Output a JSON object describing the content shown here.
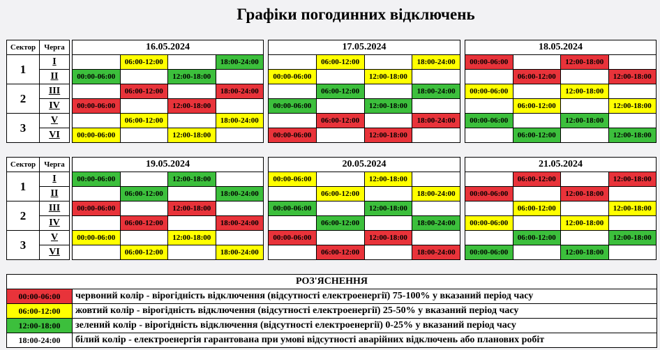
{
  "title": "Графіки погодинних відключень",
  "headers": {
    "sector": "Сектор",
    "queue": "Черга"
  },
  "rows": [
    {
      "sector": "1",
      "queue": "I"
    },
    {
      "sector": "",
      "queue": "II"
    },
    {
      "sector": "2",
      "queue": "III"
    },
    {
      "sector": "",
      "queue": "IV"
    },
    {
      "sector": "3",
      "queue": "V"
    },
    {
      "sector": "",
      "queue": "VI"
    }
  ],
  "days": [
    {
      "date": "16.05.2024",
      "rows": [
        [
          null,
          [
            "yellow",
            "06:00-12:00"
          ],
          null,
          [
            "green",
            "18:00-24:00"
          ]
        ],
        [
          [
            "green",
            "00:00-06:00"
          ],
          null,
          [
            "green",
            "12:00-18:00"
          ],
          null
        ],
        [
          null,
          [
            "red",
            "06:00-12:00"
          ],
          null,
          [
            "red",
            "18:00-24:00"
          ]
        ],
        [
          [
            "red",
            "00:00-06:00"
          ],
          null,
          [
            "red",
            "12:00-18:00"
          ],
          null
        ],
        [
          null,
          [
            "yellow",
            "06:00-12:00"
          ],
          null,
          [
            "yellow",
            "18:00-24:00"
          ]
        ],
        [
          [
            "yellow",
            "00:00-06:00"
          ],
          null,
          [
            "yellow",
            "12:00-18:00"
          ],
          null
        ]
      ]
    },
    {
      "date": "17.05.2024",
      "rows": [
        [
          null,
          [
            "yellow",
            "06:00-12:00"
          ],
          null,
          [
            "yellow",
            "18:00-24:00"
          ]
        ],
        [
          [
            "yellow",
            "00:00-06:00"
          ],
          null,
          [
            "yellow",
            "12:00-18:00"
          ],
          null
        ],
        [
          null,
          [
            "green",
            "06:00-12:00"
          ],
          null,
          [
            "green",
            "18:00-24:00"
          ]
        ],
        [
          [
            "green",
            "00:00-06:00"
          ],
          null,
          [
            "green",
            "12:00-18:00"
          ],
          null
        ],
        [
          null,
          [
            "red",
            "06:00-12:00"
          ],
          null,
          [
            "red",
            "18:00-24:00"
          ]
        ],
        [
          [
            "red",
            "00:00-06:00"
          ],
          null,
          [
            "red",
            "12:00-18:00"
          ],
          null
        ]
      ]
    },
    {
      "date": "18.05.2024",
      "rows": [
        [
          [
            "red",
            "00:00-06:00"
          ],
          null,
          [
            "red",
            "12:00-18:00"
          ],
          null
        ],
        [
          null,
          [
            "red",
            "06:00-12:00"
          ],
          null,
          [
            "red",
            "12:00-18:00"
          ]
        ],
        [
          [
            "yellow",
            "00:00-06:00"
          ],
          null,
          [
            "yellow",
            "12:00-18:00"
          ],
          null
        ],
        [
          null,
          [
            "yellow",
            "06:00-12:00"
          ],
          null,
          [
            "yellow",
            "12:00-18:00"
          ]
        ],
        [
          [
            "green",
            "00:00-06:00"
          ],
          null,
          [
            "green",
            "12:00-18:00"
          ],
          null
        ],
        [
          null,
          [
            "green",
            "06:00-12:00"
          ],
          null,
          [
            "green",
            "12:00-18:00"
          ]
        ]
      ]
    },
    {
      "date": "19.05.2024",
      "rows": [
        [
          [
            "green",
            "00:00-06:00"
          ],
          null,
          [
            "green",
            "12:00-18:00"
          ],
          null
        ],
        [
          null,
          [
            "green",
            "06:00-12:00"
          ],
          null,
          [
            "green",
            "18:00-24:00"
          ]
        ],
        [
          [
            "red",
            "00:00-06:00"
          ],
          null,
          [
            "red",
            "12:00-18:00"
          ],
          null
        ],
        [
          null,
          [
            "red",
            "06:00-12:00"
          ],
          null,
          [
            "red",
            "18:00-24:00"
          ]
        ],
        [
          [
            "yellow",
            "00:00-06:00"
          ],
          null,
          [
            "yellow",
            "12:00-18:00"
          ],
          null
        ],
        [
          null,
          [
            "yellow",
            "06:00-12:00"
          ],
          null,
          [
            "yellow",
            "18:00-24:00"
          ]
        ]
      ]
    },
    {
      "date": "20.05.2024",
      "rows": [
        [
          [
            "yellow",
            "00:00-06:00"
          ],
          null,
          [
            "yellow",
            "12:00-18:00"
          ],
          null
        ],
        [
          null,
          [
            "yellow",
            "06:00-12:00"
          ],
          null,
          [
            "yellow",
            "18:00-24:00"
          ]
        ],
        [
          [
            "green",
            "00:00-06:00"
          ],
          null,
          [
            "green",
            "12:00-18:00"
          ],
          null
        ],
        [
          null,
          [
            "green",
            "06:00-12:00"
          ],
          null,
          [
            "green",
            "18:00-24:00"
          ]
        ],
        [
          [
            "red",
            "00:00-06:00"
          ],
          null,
          [
            "red",
            "12:00-18:00"
          ],
          null
        ],
        [
          null,
          [
            "red",
            "06:00-12:00"
          ],
          null,
          [
            "red",
            "18:00-24:00"
          ]
        ]
      ]
    },
    {
      "date": "21.05.2024",
      "rows": [
        [
          null,
          [
            "red",
            "06:00-12:00"
          ],
          null,
          [
            "red",
            "12:00-18:00"
          ]
        ],
        [
          [
            "red",
            "00:00-06:00"
          ],
          null,
          [
            "red",
            "12:00-18:00"
          ],
          null
        ],
        [
          null,
          [
            "yellow",
            "06:00-12:00"
          ],
          null,
          [
            "yellow",
            "12:00-18:00"
          ]
        ],
        [
          [
            "yellow",
            "00:00-06:00"
          ],
          null,
          [
            "yellow",
            "12:00-18:00"
          ],
          null
        ],
        [
          null,
          [
            "green",
            "06:00-12:00"
          ],
          null,
          [
            "green",
            "12:00-18:00"
          ]
        ],
        [
          [
            "green",
            "00:00-06:00"
          ],
          null,
          [
            "green",
            "12:00-18:00"
          ],
          null
        ]
      ]
    }
  ],
  "legend": {
    "title": "РОЗ'ЯСНЕННЯ",
    "items": [
      {
        "color": "red",
        "label": "00:00-06:00",
        "text": "червоний колір - вірогідність відключення (відсутності електроенергії) 75-100% у вказаний період часу"
      },
      {
        "color": "yellow",
        "label": "06:00-12:00",
        "text": "жовтий колір - вірогідність відключення (відсутності електроенергії) 25-50% у вказаний період часу"
      },
      {
        "color": "green",
        "label": "12:00-18:00",
        "text": "зелений колір - вірогідність відключення (відсутності електроенергії) 0-25% у вказаний період часу"
      },
      {
        "color": "white",
        "label": "18:00-24:00",
        "text": "білий колір - електроенергія гарантована при умові відсутності аварійних відключень або планових робіт"
      }
    ]
  },
  "colors": {
    "red": "#e8333a",
    "yellow": "#ffff00",
    "green": "#3cbf3c",
    "white": "#ffffff"
  }
}
